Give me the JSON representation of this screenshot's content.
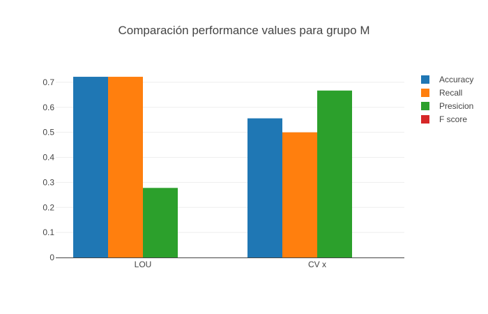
{
  "chart_data": {
    "type": "bar",
    "title": "Comparación performance values para grupo M",
    "xlabel": "",
    "ylabel": "",
    "categories": [
      "LOU",
      "CV x"
    ],
    "series": [
      {
        "name": "Accuracy",
        "color": "#1f77b4",
        "values": [
          0.722,
          0.556
        ]
      },
      {
        "name": "Recall",
        "color": "#ff7f0e",
        "values": [
          0.722,
          0.5
        ]
      },
      {
        "name": "Presicion",
        "color": "#2ca02c",
        "values": [
          0.278,
          0.667
        ]
      },
      {
        "name": "F score",
        "color": "#d62728",
        "values": [
          0,
          0
        ]
      }
    ],
    "ylim": [
      0,
      0.75
    ],
    "yticks": [
      "0",
      "0.1",
      "0.2",
      "0.3",
      "0.4",
      "0.5",
      "0.6",
      "0.7"
    ],
    "grid": true,
    "legend_position": "top-right"
  }
}
